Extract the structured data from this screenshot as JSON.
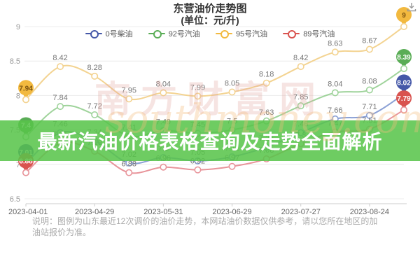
{
  "page": {
    "title_line1": "东营油价走势图",
    "title_line2": "(单位：元/升)"
  },
  "legend": [
    {
      "label": "0号柴油",
      "color": "#4558a8"
    },
    {
      "label": "92号汽油",
      "color": "#5aad56"
    },
    {
      "label": "95号汽油",
      "color": "#f2b93f"
    },
    {
      "label": "89号汽油",
      "color": "#d9534f"
    }
  ],
  "banner": {
    "text": "最新汽油价格表格查询及走势全面解析",
    "bg": "#58c44a"
  },
  "watermark": {
    "cn": "南方财富网",
    "en": "southmoney.com"
  },
  "disclaimer": "说明：图例为山东最近12次调价的油价走势，本网站油价数据仅供参考，请以您所在地区的加油站报价为准。",
  "toolbox": {
    "save_image_icon": "download"
  },
  "chart_data": {
    "type": "line",
    "title": "东营油价走势图（单位：元/升）",
    "n_points": 12,
    "x_tick_labels": [
      "2023-04-01",
      "2023-04-29",
      "2023-05-31",
      "2023-06-29",
      "2023-07-27",
      "2023-08-24"
    ],
    "x_tick_indices": [
      0,
      2,
      4,
      6,
      8,
      10
    ],
    "ylim": [
      6.5,
      9
    ],
    "y_ticks": [
      9,
      8.5,
      8,
      7.5,
      7,
      6.5
    ],
    "grid": true,
    "legend_position": "top",
    "series": [
      {
        "name": "0号柴油",
        "color": "#4558a8",
        "line_color": "#8ba0d5",
        "values": [
          7.01,
          7.46,
          7.34,
          7.02,
          7.1,
          7.05,
          7.11,
          7.25,
          7.46,
          7.66,
          7.71,
          8.02
        ]
      },
      {
        "name": "92号汽油",
        "color": "#5aad56",
        "line_color": "#9fd39b",
        "values": [
          7.4,
          7.84,
          7.72,
          7.41,
          7.49,
          7.45,
          7.5,
          7.63,
          7.85,
          8.04,
          8.08,
          8.39
        ]
      },
      {
        "name": "95号汽油",
        "color": "#f2b93f",
        "line_color": "#f3d391",
        "values": [
          7.94,
          8.42,
          8.28,
          7.95,
          8.04,
          7.99,
          8.05,
          8.18,
          8.42,
          8.63,
          8.67,
          9
        ]
      },
      {
        "name": "89号汽油",
        "color": "#d9534f",
        "line_color": "#e8949a",
        "values": [
          6.88,
          7.31,
          7.19,
          6.88,
          6.96,
          6.92,
          6.97,
          7.08,
          7.3,
          7.47,
          7.51,
          7.79
        ]
      }
    ]
  }
}
